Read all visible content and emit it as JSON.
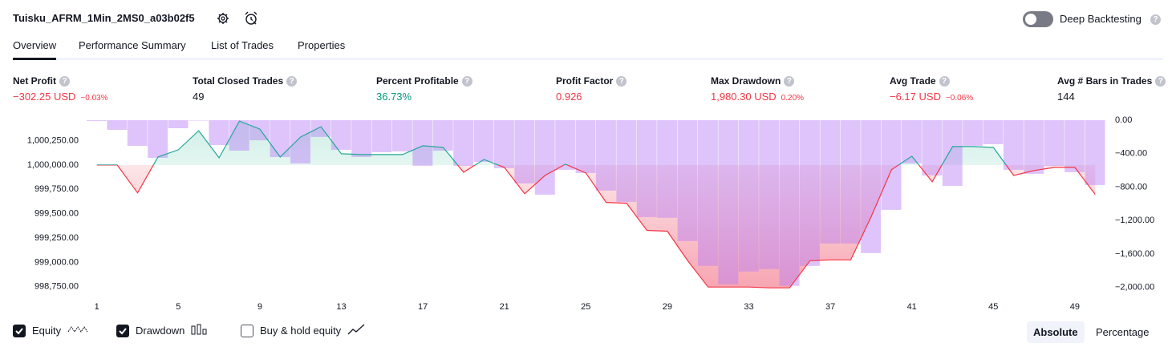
{
  "header": {
    "title": "Tuisku_AFRM_1Min_2MS0_a03b02f5",
    "deep_backtesting": "Deep Backtesting",
    "deep_backtesting_on": false
  },
  "tabs": [
    {
      "label": "Overview",
      "active": true
    },
    {
      "label": "Performance Summary",
      "active": false
    },
    {
      "label": "List of Trades",
      "active": false
    },
    {
      "label": "Properties",
      "active": false
    }
  ],
  "metrics": [
    {
      "label": "Net Profit",
      "value": "−302.25 USD",
      "change": "−0.03%",
      "tone": "negative"
    },
    {
      "label": "Total Closed Trades",
      "value": "49",
      "tone": "neutral"
    },
    {
      "label": "Percent Profitable",
      "value": "36.73%",
      "tone": "positive"
    },
    {
      "label": "Profit Factor",
      "value": "0.926",
      "tone": "negative"
    },
    {
      "label": "Max Drawdown",
      "value": "1,980.30 USD",
      "change": "0.20%",
      "tone": "negative"
    },
    {
      "label": "Avg Trade",
      "value": "−6.17 USD",
      "change": "−0.06%",
      "tone": "negative"
    },
    {
      "label": "Avg # Bars in Trades",
      "value": "144",
      "tone": "neutral"
    }
  ],
  "chart_data": {
    "type": "line",
    "x": [
      1,
      2,
      3,
      4,
      5,
      6,
      7,
      8,
      9,
      10,
      11,
      12,
      13,
      14,
      15,
      16,
      17,
      18,
      19,
      20,
      21,
      22,
      23,
      24,
      25,
      26,
      27,
      28,
      29,
      30,
      31,
      32,
      33,
      34,
      35,
      36,
      37,
      38,
      39,
      40,
      41,
      42,
      43,
      44,
      45,
      46,
      47,
      48,
      49,
      50
    ],
    "xlim": [
      0.5,
      50.5
    ],
    "xticks": [
      1,
      5,
      9,
      13,
      17,
      21,
      25,
      29,
      33,
      37,
      41,
      45,
      49
    ],
    "series": [
      {
        "name": "Equity",
        "type": "line",
        "color": "#26a69a",
        "negative_color": "#f23645",
        "visible": true,
        "values": [
          1000000,
          1000000,
          999713,
          1000082,
          1000156,
          1000352,
          1000074,
          1000451,
          1000369,
          1000082,
          1000287,
          1000393,
          1000115,
          1000107,
          1000107,
          1000107,
          1000197,
          1000180,
          999926,
          1000057,
          999975,
          999705,
          999893,
          1000008,
          999918,
          999615,
          999607,
          999328,
          999320,
          999016,
          998746,
          998746,
          998746,
          998738,
          998738,
          999016,
          999025,
          999025,
          999467,
          999951,
          1000090,
          999828,
          1000189,
          1000189,
          1000180,
          999893,
          999943,
          999975,
          999975,
          999697.75
        ]
      },
      {
        "name": "Drawdown",
        "type": "bar",
        "axis": "y2",
        "color": "#b57cf6",
        "visible": true,
        "values": [
          -10,
          -115,
          -306,
          -450,
          -96,
          -5,
          -297,
          -364,
          -240,
          -440,
          -517,
          -200,
          -354,
          -440,
          -383,
          -373,
          -545,
          -364,
          -545,
          -498,
          -574,
          -756,
          -890,
          -593,
          -632,
          -842,
          -976,
          -1158,
          -1167,
          -1445,
          -1742,
          -1962,
          -1809,
          -1780,
          -1980.3,
          -1742,
          -1474,
          -1474,
          -1589,
          -1072,
          -517,
          -660,
          -785,
          -306,
          -287,
          -593,
          -641,
          -545,
          -622,
          -775
        ]
      }
    ],
    "benchmark": {
      "name": "Buy & hold equity",
      "visible": false
    },
    "ylim": [
      998690,
      1000460
    ],
    "yticks": [
      {
        "value": 1000250,
        "label": "1,000,250.00"
      },
      {
        "value": 1000000,
        "label": "1,000,000.00"
      },
      {
        "value": 999750,
        "label": "999,750.00"
      },
      {
        "value": 999500,
        "label": "999,500.00"
      },
      {
        "value": 999250,
        "label": "999,250.00"
      },
      {
        "value": 999000,
        "label": "999,000.00"
      },
      {
        "value": 998750,
        "label": "998,750.00"
      }
    ],
    "y2lim": [
      -2060,
      0
    ],
    "y2ticks": [
      {
        "value": 0,
        "label": "0.00"
      },
      {
        "value": -400,
        "label": "−400.00"
      },
      {
        "value": -800,
        "label": "−800.00"
      },
      {
        "value": -1200,
        "label": "−1,200.00"
      },
      {
        "value": -1600,
        "label": "−1,600.00"
      },
      {
        "value": -2000,
        "label": "−2,000.00"
      }
    ],
    "grid": false
  },
  "scale_modes": [
    {
      "label": "Absolute",
      "active": true
    },
    {
      "label": "Percentage",
      "active": false
    }
  ]
}
